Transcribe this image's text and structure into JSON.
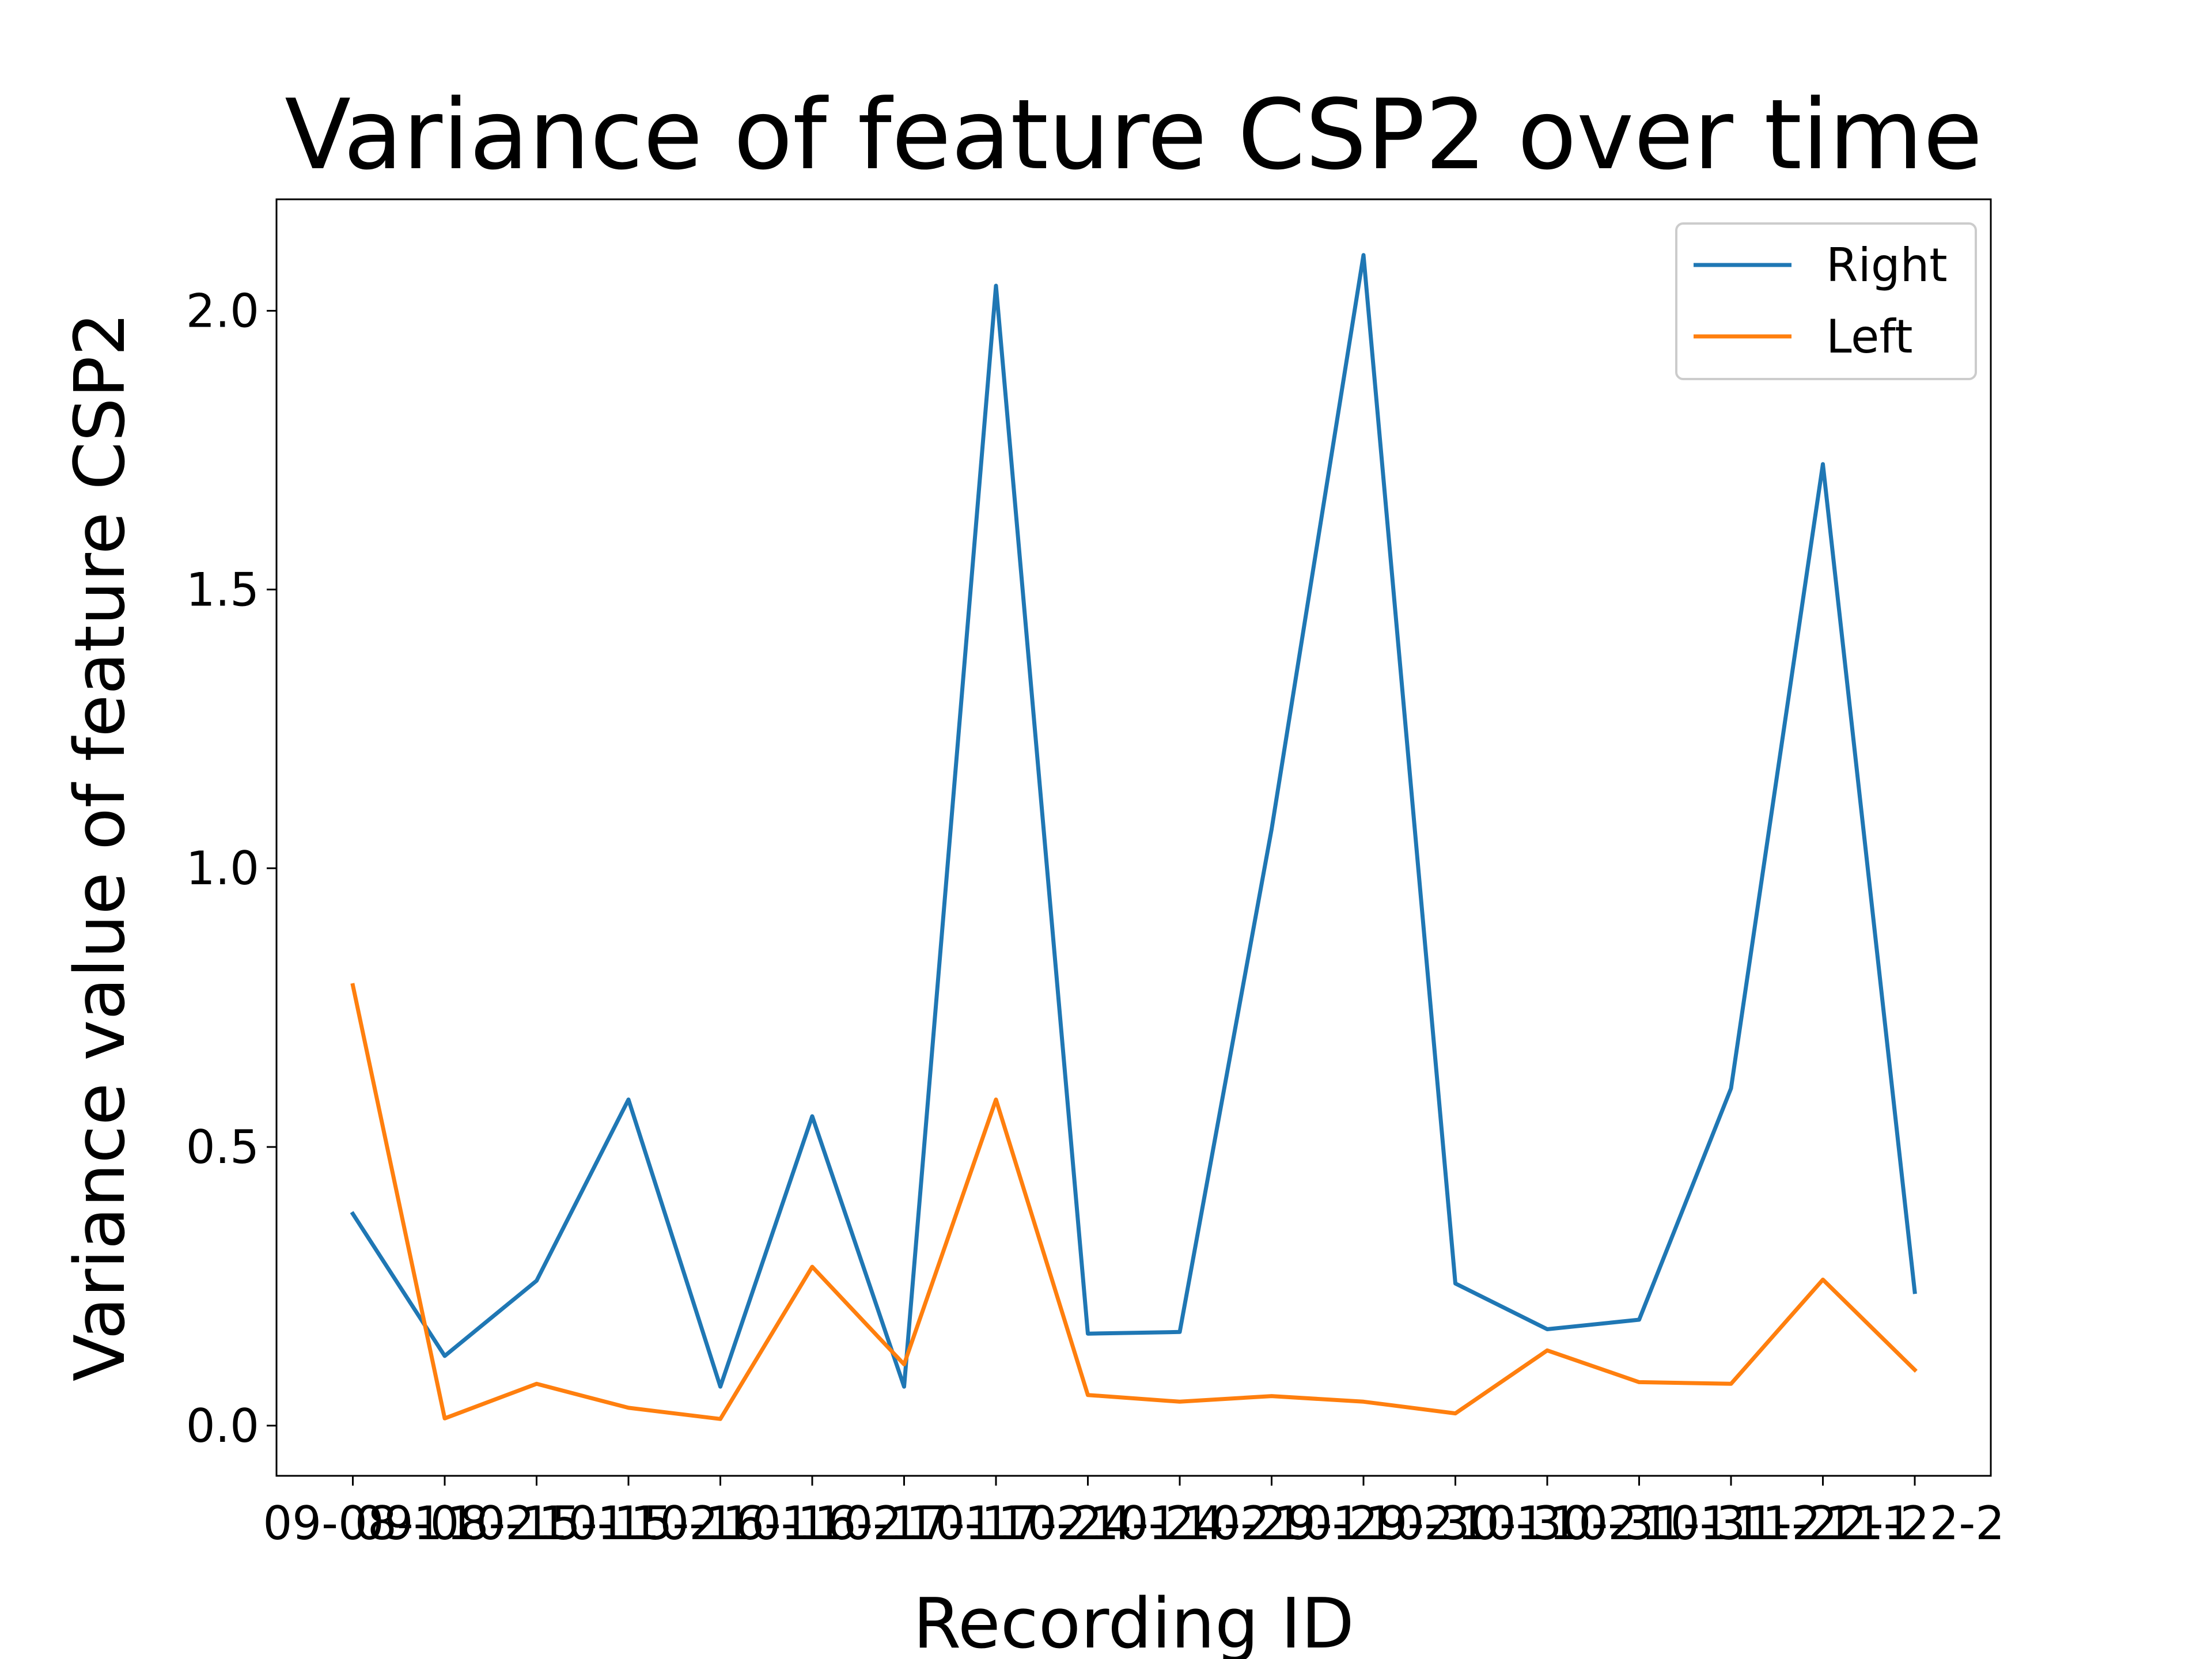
{
  "chart_data": {
    "type": "line",
    "title": "Variance of feature CSP2 over time",
    "xlabel": "Recording ID",
    "ylabel": "Variance value of feature CSP2",
    "categories": [
      "09-08-1",
      "09-08-2",
      "10-15-1",
      "10-15-2",
      "10-16-1",
      "10-16-2",
      "10-17-1",
      "10-17-2",
      "10-24-1",
      "10-24-2",
      "10-29-1",
      "10-29-2",
      "10-30-1",
      "10-30-2",
      "10-31-1",
      "10-31-2",
      "11-22-1",
      "11-22-2"
    ],
    "ylim": [
      -0.09,
      2.2
    ],
    "yticks": [
      0.0,
      0.5,
      1.0,
      1.5,
      2.0
    ],
    "ytick_labels": [
      "0.0",
      "0.5",
      "1.0",
      "1.5",
      "2.0"
    ],
    "series": [
      {
        "name": "Right",
        "color": "#1f77b4",
        "values": [
          0.38,
          0.125,
          0.26,
          0.585,
          0.07,
          0.555,
          0.07,
          2.045,
          0.165,
          0.168,
          1.07,
          2.1,
          0.255,
          0.173,
          0.19,
          0.605,
          1.725,
          0.24
        ]
      },
      {
        "name": "Left",
        "color": "#ff7f0e",
        "values": [
          0.79,
          0.013,
          0.075,
          0.032,
          0.012,
          0.285,
          0.11,
          0.585,
          0.055,
          0.043,
          0.053,
          0.043,
          0.022,
          0.135,
          0.078,
          0.075,
          0.262,
          0.1
        ]
      }
    ],
    "legend_position": "top-right",
    "grid": false
  }
}
